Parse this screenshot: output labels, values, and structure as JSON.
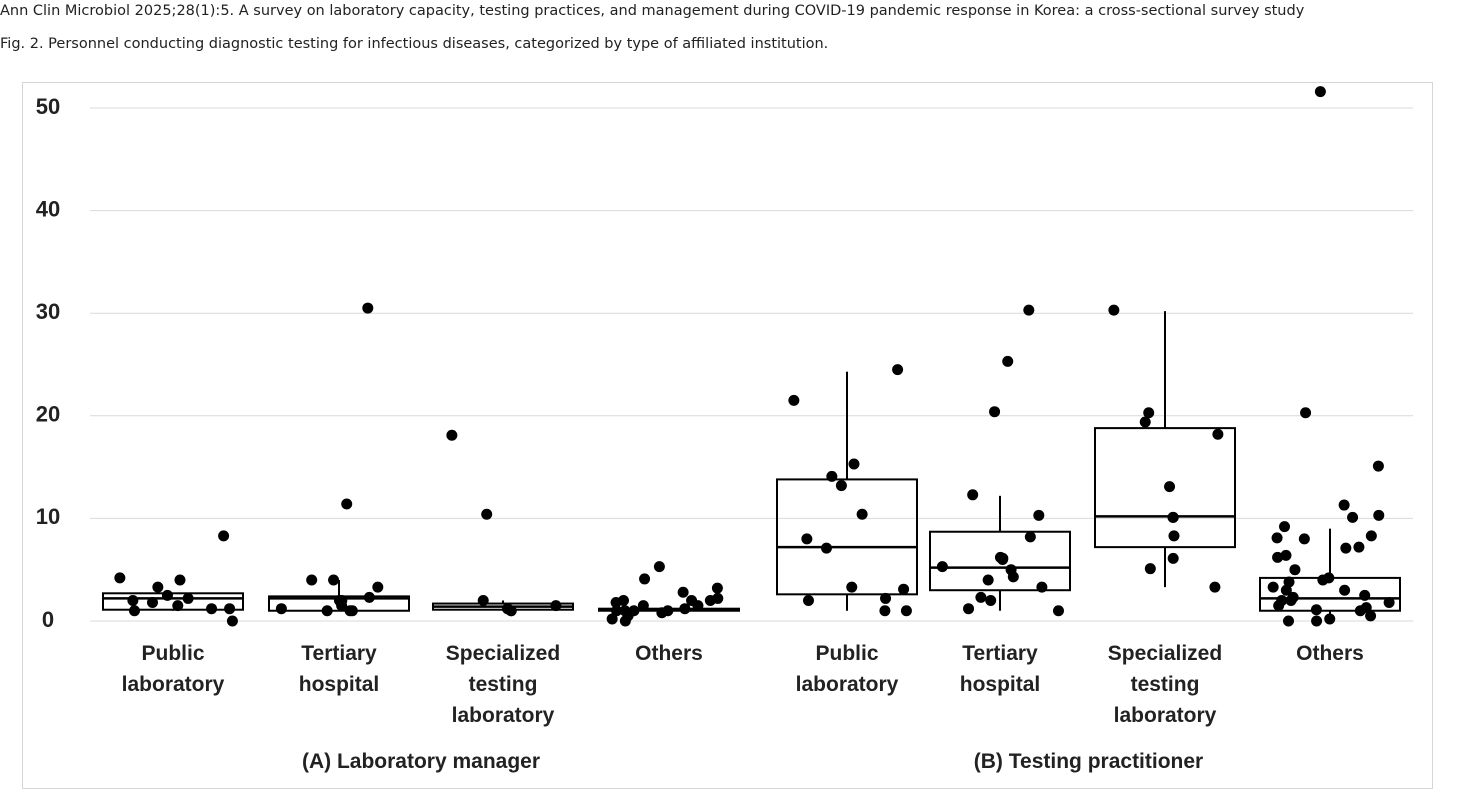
{
  "header": {
    "citation": "Ann Clin Microbiol 2025;28(1):5. A survey on laboratory capacity, testing practices, and management during COVID-19 pandemic response in Korea: a cross-sectional survey study",
    "caption": "Fig. 2. Personnel conducting diagnostic testing for infectious diseases, categorized by type of affiliated institution."
  },
  "chart_data": {
    "type": "box",
    "ylim": [
      0,
      52.6
    ],
    "yticks": [
      0,
      10,
      20,
      30,
      40,
      50
    ],
    "grid": true,
    "color": "#000000",
    "panels": [
      {
        "name": "(A) Laboratory manager",
        "categories": [
          "Public laboratory",
          "Tertiary hospital",
          "Specialized testing laboratory",
          "Others"
        ],
        "boxes": [
          {
            "whisker_low": 1.0,
            "q1": 1.1,
            "median": 2.2,
            "q3": 2.7,
            "whisker_high": 2.7,
            "points": [
              8.3,
              4.2,
              4.0,
              3.3,
              2.5,
              2.2,
              2.0,
              1.8,
              1.5,
              1.2,
              1.2,
              1.0,
              0.0
            ]
          },
          {
            "whisker_low": 1.0,
            "q1": 1.0,
            "median": 2.2,
            "q3": 2.4,
            "whisker_high": 4.0,
            "points": [
              30.5,
              11.4,
              4.0,
              4.0,
              3.3,
              2.3,
              2.0,
              2.0,
              1.5,
              1.2,
              1.0,
              1.0,
              1.0
            ]
          },
          {
            "whisker_low": 1.0,
            "q1": 1.1,
            "median": 1.4,
            "q3": 1.7,
            "whisker_high": 2.0,
            "points": [
              18.1,
              10.4,
              2.0,
              1.5,
              1.2,
              1.0,
              1.0
            ]
          },
          {
            "whisker_low": 1.0,
            "q1": 1.0,
            "median": 1.1,
            "q3": 1.2,
            "whisker_high": 1.2,
            "points": [
              5.3,
              4.1,
              3.2,
              2.8,
              2.2,
              2.0,
              2.0,
              2.0,
              1.8,
              1.5,
              1.5,
              1.2,
              1.0,
              1.0,
              1.0,
              1.0,
              0.8,
              0.5,
              0.2,
              0.0
            ]
          }
        ]
      },
      {
        "name": "(B) Testing practitioner",
        "categories": [
          "Public laboratory",
          "Tertiary hospital",
          "Specialized testing laboratory",
          "Others"
        ],
        "boxes": [
          {
            "whisker_low": 1.0,
            "q1": 2.6,
            "median": 7.2,
            "q3": 13.8,
            "whisker_high": 24.3,
            "points": [
              24.5,
              21.5,
              15.3,
              14.1,
              13.2,
              10.4,
              8.0,
              7.1,
              3.3,
              3.1,
              2.2,
              2.0,
              1.0,
              1.0
            ]
          },
          {
            "whisker_low": 1.0,
            "q1": 3.0,
            "median": 5.2,
            "q3": 8.7,
            "whisker_high": 12.2,
            "points": [
              30.3,
              25.3,
              20.4,
              12.3,
              10.3,
              8.2,
              6.2,
              6.1,
              6.0,
              5.3,
              5.0,
              4.3,
              4.0,
              3.3,
              2.3,
              2.0,
              1.2,
              1.0
            ]
          },
          {
            "whisker_low": 3.3,
            "q1": 7.2,
            "median": 10.2,
            "q3": 18.8,
            "whisker_high": 30.2,
            "points": [
              30.3,
              20.3,
              19.4,
              18.2,
              13.1,
              10.1,
              10.1,
              8.3,
              6.1,
              5.1,
              3.3
            ]
          },
          {
            "whisker_low": 0.0,
            "q1": 1.0,
            "median": 2.2,
            "q3": 4.2,
            "whisker_high": 9.0,
            "points": [
              51.6,
              20.3,
              15.1,
              11.3,
              10.3,
              10.1,
              9.2,
              8.3,
              8.1,
              8.0,
              7.2,
              7.1,
              6.4,
              6.2,
              5.0,
              4.2,
              4.0,
              3.8,
              3.3,
              3.0,
              3.0,
              2.5,
              2.3,
              2.0,
              2.0,
              1.8,
              1.5,
              1.3,
              1.1,
              1.0,
              0.5,
              0.2,
              0.0,
              0.0
            ]
          }
        ]
      }
    ]
  }
}
